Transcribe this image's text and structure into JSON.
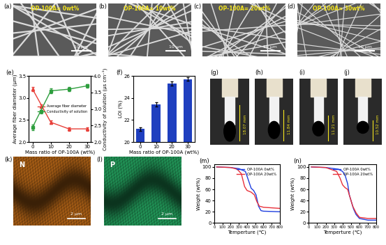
{
  "chart_data": [
    {
      "type": "line",
      "title": "(e)",
      "x_label": "Mass ratio of OP-100A (wt%)",
      "y_label": "Average fiber diameter (μm)",
      "y2_label": "Conductivity of solution (μs cm⁻¹)",
      "x": [
        0,
        10,
        20,
        30
      ],
      "xlim": [
        -2,
        32
      ],
      "xticks": [
        0,
        10,
        20,
        30
      ],
      "ylim": [
        2.0,
        3.5
      ],
      "yticks": [
        {
          "value": 2.0,
          "label": "2.0"
        },
        {
          "value": 2.5,
          "label": "2.5"
        },
        {
          "value": 3.0,
          "label": "3.0"
        },
        {
          "value": 3.5,
          "label": "3.5"
        }
      ],
      "y2lim": [
        2.0,
        4.0
      ],
      "y2ticks": [
        {
          "value": 2.0,
          "label": "2.0"
        },
        {
          "value": 2.5,
          "label": "2.5"
        },
        {
          "value": 3.0,
          "label": "3.0"
        },
        {
          "value": 3.5,
          "label": "3.5"
        },
        {
          "value": 4.0,
          "label": "4.0"
        }
      ],
      "legend": "center right",
      "series": [
        {
          "name": "Average fiber diameter",
          "color": "#e8403a",
          "marker": "triangle",
          "values": [
            3.2,
            2.45,
            2.3,
            2.3
          ],
          "error": [
            0.05,
            0.04,
            0.04,
            0.04
          ]
        },
        {
          "name": "Conductivity of solution",
          "color": "#2e9e3e",
          "marker": "square",
          "axis": "y2",
          "values": [
            2.45,
            3.55,
            3.6,
            3.7
          ],
          "error": [
            0.08,
            0.07,
            0.06,
            0.05
          ]
        }
      ]
    },
    {
      "type": "bar",
      "title": "(f)",
      "x_label": "Mass ratio of OP-100A (wt%)",
      "y_label": "LOI (%)",
      "categories": [
        "0",
        "10",
        "20",
        "30"
      ],
      "values": [
        21.2,
        23.4,
        25.3,
        25.7
      ],
      "error": [
        0.15,
        0.2,
        0.2,
        0.15
      ],
      "color": "#1f3fbf",
      "ylim": [
        20,
        26
      ],
      "yticks": [
        20,
        22,
        24,
        26
      ]
    },
    {
      "type": "line",
      "title": "(m)",
      "x_label": "Temperture (℃)",
      "y_label": "Weight (wt%)",
      "xlim": [
        0,
        800
      ],
      "xticks": [
        0,
        100,
        200,
        300,
        400,
        500,
        600,
        700,
        800
      ],
      "ylim": [
        0,
        105
      ],
      "yticks": [
        0,
        20,
        40,
        60,
        80,
        100
      ],
      "legend": "upper right",
      "series": [
        {
          "name": "OP-100A 0wt%",
          "color": "#1f3fdf",
          "x": [
            30,
            200,
            300,
            380,
            420,
            450,
            480,
            510,
            540,
            570,
            600,
            800
          ],
          "values": [
            100,
            99,
            97,
            92,
            75,
            62,
            58,
            50,
            30,
            22,
            21,
            20
          ]
        },
        {
          "name": "OP-100A 20wt%",
          "color": "#e8303a",
          "x": [
            30,
            200,
            280,
            330,
            370,
            400,
            450,
            490,
            520,
            550,
            600,
            800
          ],
          "values": [
            100,
            99,
            96,
            88,
            65,
            58,
            55,
            50,
            38,
            30,
            28,
            26
          ]
        }
      ]
    },
    {
      "type": "line",
      "title": "(n)",
      "x_label": "Temperture (℃)",
      "y_label": "Weight (wt%)",
      "xlim": [
        0,
        800
      ],
      "xticks": [
        0,
        100,
        200,
        300,
        400,
        500,
        600,
        700,
        800
      ],
      "ylim": [
        0,
        105
      ],
      "yticks": [
        0,
        20,
        40,
        60,
        80,
        100
      ],
      "legend": "upper right",
      "series": [
        {
          "name": "OP-100A 0wt%",
          "color": "#1f3fdf",
          "x": [
            30,
            200,
            350,
            400,
            430,
            460,
            480,
            500,
            530,
            560,
            600,
            700,
            800
          ],
          "values": [
            100,
            99,
            96,
            92,
            85,
            70,
            50,
            40,
            25,
            15,
            8,
            5,
            5
          ]
        },
        {
          "name": "OP-100A 20wt%",
          "color": "#e8303a",
          "x": [
            30,
            200,
            330,
            370,
            400,
            430,
            460,
            490,
            520,
            560,
            600,
            700,
            800
          ],
          "values": [
            100,
            99,
            92,
            80,
            68,
            63,
            60,
            45,
            30,
            18,
            10,
            8,
            8
          ]
        }
      ]
    }
  ],
  "sem_images": [
    {
      "title": "(a)",
      "text": "OP-100A= 0wt%",
      "scale_bar": "10 μm"
    },
    {
      "title": "(b)",
      "text": "OP-100A= 10wt%",
      "scale_bar": "10 μm"
    },
    {
      "title": "(c)",
      "text": "OP-100A= 20wt%",
      "scale_bar": "10 μm"
    },
    {
      "title": "(d)",
      "text": "OP-100A= 30wt%",
      "scale_bar": "10 μm"
    }
  ],
  "burn_photos": [
    {
      "title": "(g)",
      "length": "18.07 mm"
    },
    {
      "title": "(h)",
      "length": "11.84 mm"
    },
    {
      "title": "(i)",
      "length": "11.21 mm"
    },
    {
      "title": "(j)",
      "length": "10.52 mm"
    }
  ],
  "eds_maps": [
    {
      "title": "(k)",
      "element": "N",
      "scale_bar": "2 μm",
      "color": "#e8821e"
    },
    {
      "title": "(l)",
      "element": "P",
      "scale_bar": "2 μm",
      "color": "#2fd07a"
    }
  ]
}
